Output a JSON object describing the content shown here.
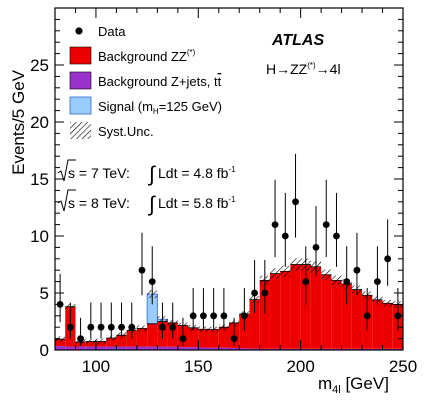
{
  "chart_data": {
    "type": "bar",
    "xlabel_main": "m",
    "xlabel_sub": "4l",
    "xlabel_unit": " [GeV]",
    "ylabel": "Events/5 GeV",
    "xlim": [
      80,
      250
    ],
    "ylim": [
      0,
      30
    ],
    "x_ticks": [
      100,
      150,
      200,
      250
    ],
    "y_ticks": [
      0,
      5,
      10,
      15,
      20,
      25
    ],
    "bin_width": 5,
    "bin_low_edges": [
      80,
      85,
      90,
      95,
      100,
      105,
      110,
      115,
      120,
      125,
      130,
      135,
      140,
      145,
      150,
      155,
      160,
      165,
      170,
      175,
      180,
      185,
      190,
      195,
      200,
      205,
      210,
      215,
      220,
      225,
      230,
      235,
      240,
      245
    ],
    "colors": {
      "zz": "#ee0000",
      "zjets": "#9933cc",
      "signal": "#99ccff",
      "signal_edge": "#3366cc"
    },
    "series": [
      {
        "name": "Background ZZ",
        "values": [
          0.6,
          3.5,
          0.4,
          0.45,
          0.45,
          0.75,
          1.0,
          1.4,
          1.6,
          2.0,
          2.2,
          2.1,
          1.9,
          1.7,
          1.6,
          1.6,
          1.8,
          2.2,
          3.0,
          4.3,
          6.0,
          6.6,
          6.8,
          7.4,
          7.4,
          7.2,
          6.5,
          6.0,
          5.7,
          5.2,
          4.7,
          4.3,
          4.0,
          3.9
        ]
      },
      {
        "name": "Background Z+jets, tt̅",
        "values": [
          0.35,
          0.3,
          0.3,
          0.3,
          0.3,
          0.3,
          0.3,
          0.3,
          0.3,
          0.3,
          0.3,
          0.28,
          0.25,
          0.25,
          0.22,
          0.2,
          0.2,
          0.18,
          0.15,
          0.12,
          0.1,
          0.1,
          0.1,
          0.1,
          0.1,
          0.1,
          0.1,
          0.1,
          0.1,
          0.1,
          0.1,
          0.1,
          0.1,
          0.1
        ]
      },
      {
        "name": "Signal (m_H=125 GeV)",
        "values": [
          0,
          0,
          0,
          0,
          0,
          0,
          0,
          0,
          0,
          2.6,
          0.2,
          0,
          0,
          0,
          0,
          0,
          0,
          0,
          0,
          0,
          0,
          0,
          0,
          0,
          0,
          0,
          0,
          0,
          0,
          0,
          0,
          0,
          0,
          0
        ]
      }
    ],
    "data_points": [
      {
        "x": 82.5,
        "y": 4
      },
      {
        "x": 87.5,
        "y": 2
      },
      {
        "x": 92.5,
        "y": 1
      },
      {
        "x": 97.5,
        "y": 2
      },
      {
        "x": 102.5,
        "y": 2
      },
      {
        "x": 107.5,
        "y": 2
      },
      {
        "x": 112.5,
        "y": 2
      },
      {
        "x": 117.5,
        "y": 2
      },
      {
        "x": 122.5,
        "y": 7
      },
      {
        "x": 127.5,
        "y": 6
      },
      {
        "x": 132.5,
        "y": 2
      },
      {
        "x": 137.5,
        "y": 2
      },
      {
        "x": 142.5,
        "y": 1
      },
      {
        "x": 147.5,
        "y": 3
      },
      {
        "x": 152.5,
        "y": 3
      },
      {
        "x": 157.5,
        "y": 3
      },
      {
        "x": 162.5,
        "y": 3
      },
      {
        "x": 167.5,
        "y": 1
      },
      {
        "x": 172.5,
        "y": 3
      },
      {
        "x": 177.5,
        "y": 5
      },
      {
        "x": 182.5,
        "y": 5
      },
      {
        "x": 187.5,
        "y": 11
      },
      {
        "x": 192.5,
        "y": 10
      },
      {
        "x": 197.5,
        "y": 13
      },
      {
        "x": 202.5,
        "y": 6
      },
      {
        "x": 207.5,
        "y": 9
      },
      {
        "x": 212.5,
        "y": 11
      },
      {
        "x": 217.5,
        "y": 10
      },
      {
        "x": 222.5,
        "y": 6
      },
      {
        "x": 227.5,
        "y": 7
      },
      {
        "x": 232.5,
        "y": 3
      },
      {
        "x": 237.5,
        "y": 6
      },
      {
        "x": 242.5,
        "y": 8
      },
      {
        "x": 247.5,
        "y": 3
      }
    ],
    "legend": {
      "placement": "top-left",
      "data": "Data",
      "zz": "Background ZZ",
      "zz_sup": "(*)",
      "zjets": "Background Z+jets, t",
      "zjets_t": "t",
      "signal_pre": "Signal (m",
      "signal_sub": "H",
      "signal_post": "=125 GeV)",
      "syst": "Syst.Unc."
    },
    "annotations": {
      "atlas": "ATLAS",
      "process_pre": "H→ZZ",
      "process_sup": "(*)",
      "process_post": "→4l",
      "lumi7_a": "s = 7 TeV: ",
      "lumi7_b": "Ldt = 4.8 fb",
      "lumi8_a": "s = 8 TeV: ",
      "lumi8_b": "Ldt = 5.8 fb",
      "lumi_sup": "-1"
    }
  }
}
